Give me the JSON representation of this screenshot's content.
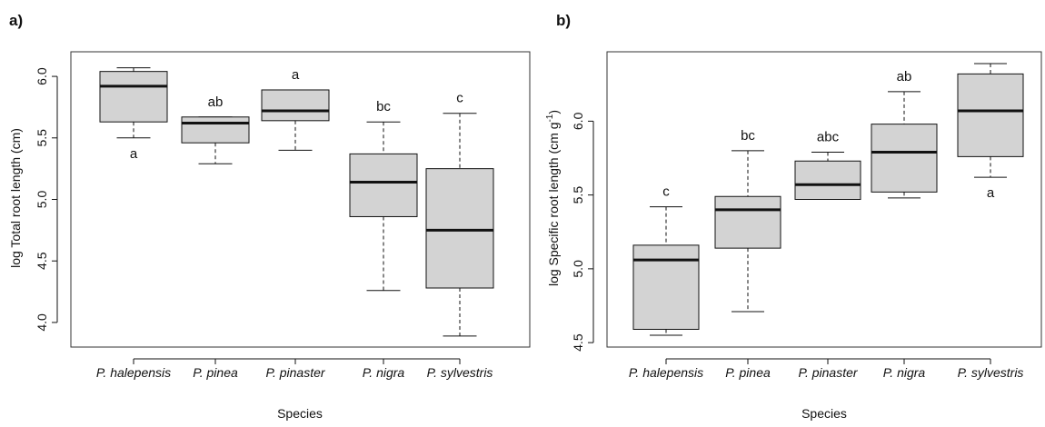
{
  "chart_data": [
    {
      "type": "box",
      "panel_label": "a)",
      "xlabel": "Species",
      "ylabel": "log Total root length (cm)",
      "ylim": [
        3.8,
        6.2
      ],
      "yticks": [
        "4.0",
        "4.5",
        "5.0",
        "5.5",
        "6.0"
      ],
      "categories": [
        "P. halepensis",
        "P. pinea",
        "P. pinaster",
        "P. nigra",
        "P. sylvestris"
      ],
      "boxes": [
        {
          "min": 5.5,
          "q1": 5.63,
          "median": 5.92,
          "q3": 6.04,
          "max": 6.07
        },
        {
          "min": 5.29,
          "q1": 5.46,
          "median": 5.62,
          "q3": 5.67,
          "max": 5.67
        },
        {
          "min": 5.4,
          "q1": 5.64,
          "median": 5.72,
          "q3": 5.89,
          "max": 5.89
        },
        {
          "min": 4.26,
          "q1": 4.86,
          "median": 5.14,
          "q3": 5.37,
          "max": 5.63
        },
        {
          "min": 3.89,
          "q1": 4.28,
          "median": 4.75,
          "q3": 5.25,
          "max": 5.7
        }
      ],
      "letters": [
        "a",
        "ab",
        "a",
        "bc",
        "c"
      ],
      "letter_positions": [
        "below",
        "above",
        "above",
        "above",
        "above"
      ]
    },
    {
      "type": "box",
      "panel_label": "b)",
      "xlabel": "Species",
      "ylabel": "log Specific root length (cm g",
      "ylabel_sup": "-1",
      "ylabel_end": ")",
      "ylim": [
        4.47,
        6.47
      ],
      "yticks": [
        "4.5",
        "5.0",
        "5.5",
        "6.0"
      ],
      "categories": [
        "P. halepensis",
        "P. pinea",
        "P. pinaster",
        "P. nigra",
        "P. sylvestris"
      ],
      "boxes": [
        {
          "min": 4.55,
          "q1": 4.59,
          "median": 5.06,
          "q3": 5.16,
          "max": 5.42
        },
        {
          "min": 4.71,
          "q1": 5.14,
          "median": 5.4,
          "q3": 5.49,
          "max": 5.8
        },
        {
          "min": 5.47,
          "q1": 5.47,
          "median": 5.57,
          "q3": 5.73,
          "max": 5.79
        },
        {
          "min": 5.48,
          "q1": 5.52,
          "median": 5.79,
          "q3": 5.98,
          "max": 6.2
        },
        {
          "min": 5.62,
          "q1": 5.76,
          "median": 6.07,
          "q3": 6.32,
          "max": 6.39
        }
      ],
      "letters": [
        "c",
        "bc",
        "abc",
        "ab",
        "a"
      ],
      "letter_positions": [
        "above",
        "above",
        "above",
        "above",
        "below"
      ]
    }
  ],
  "style": {
    "box_fill": "#d3d3d3",
    "line_color": "#111111"
  }
}
